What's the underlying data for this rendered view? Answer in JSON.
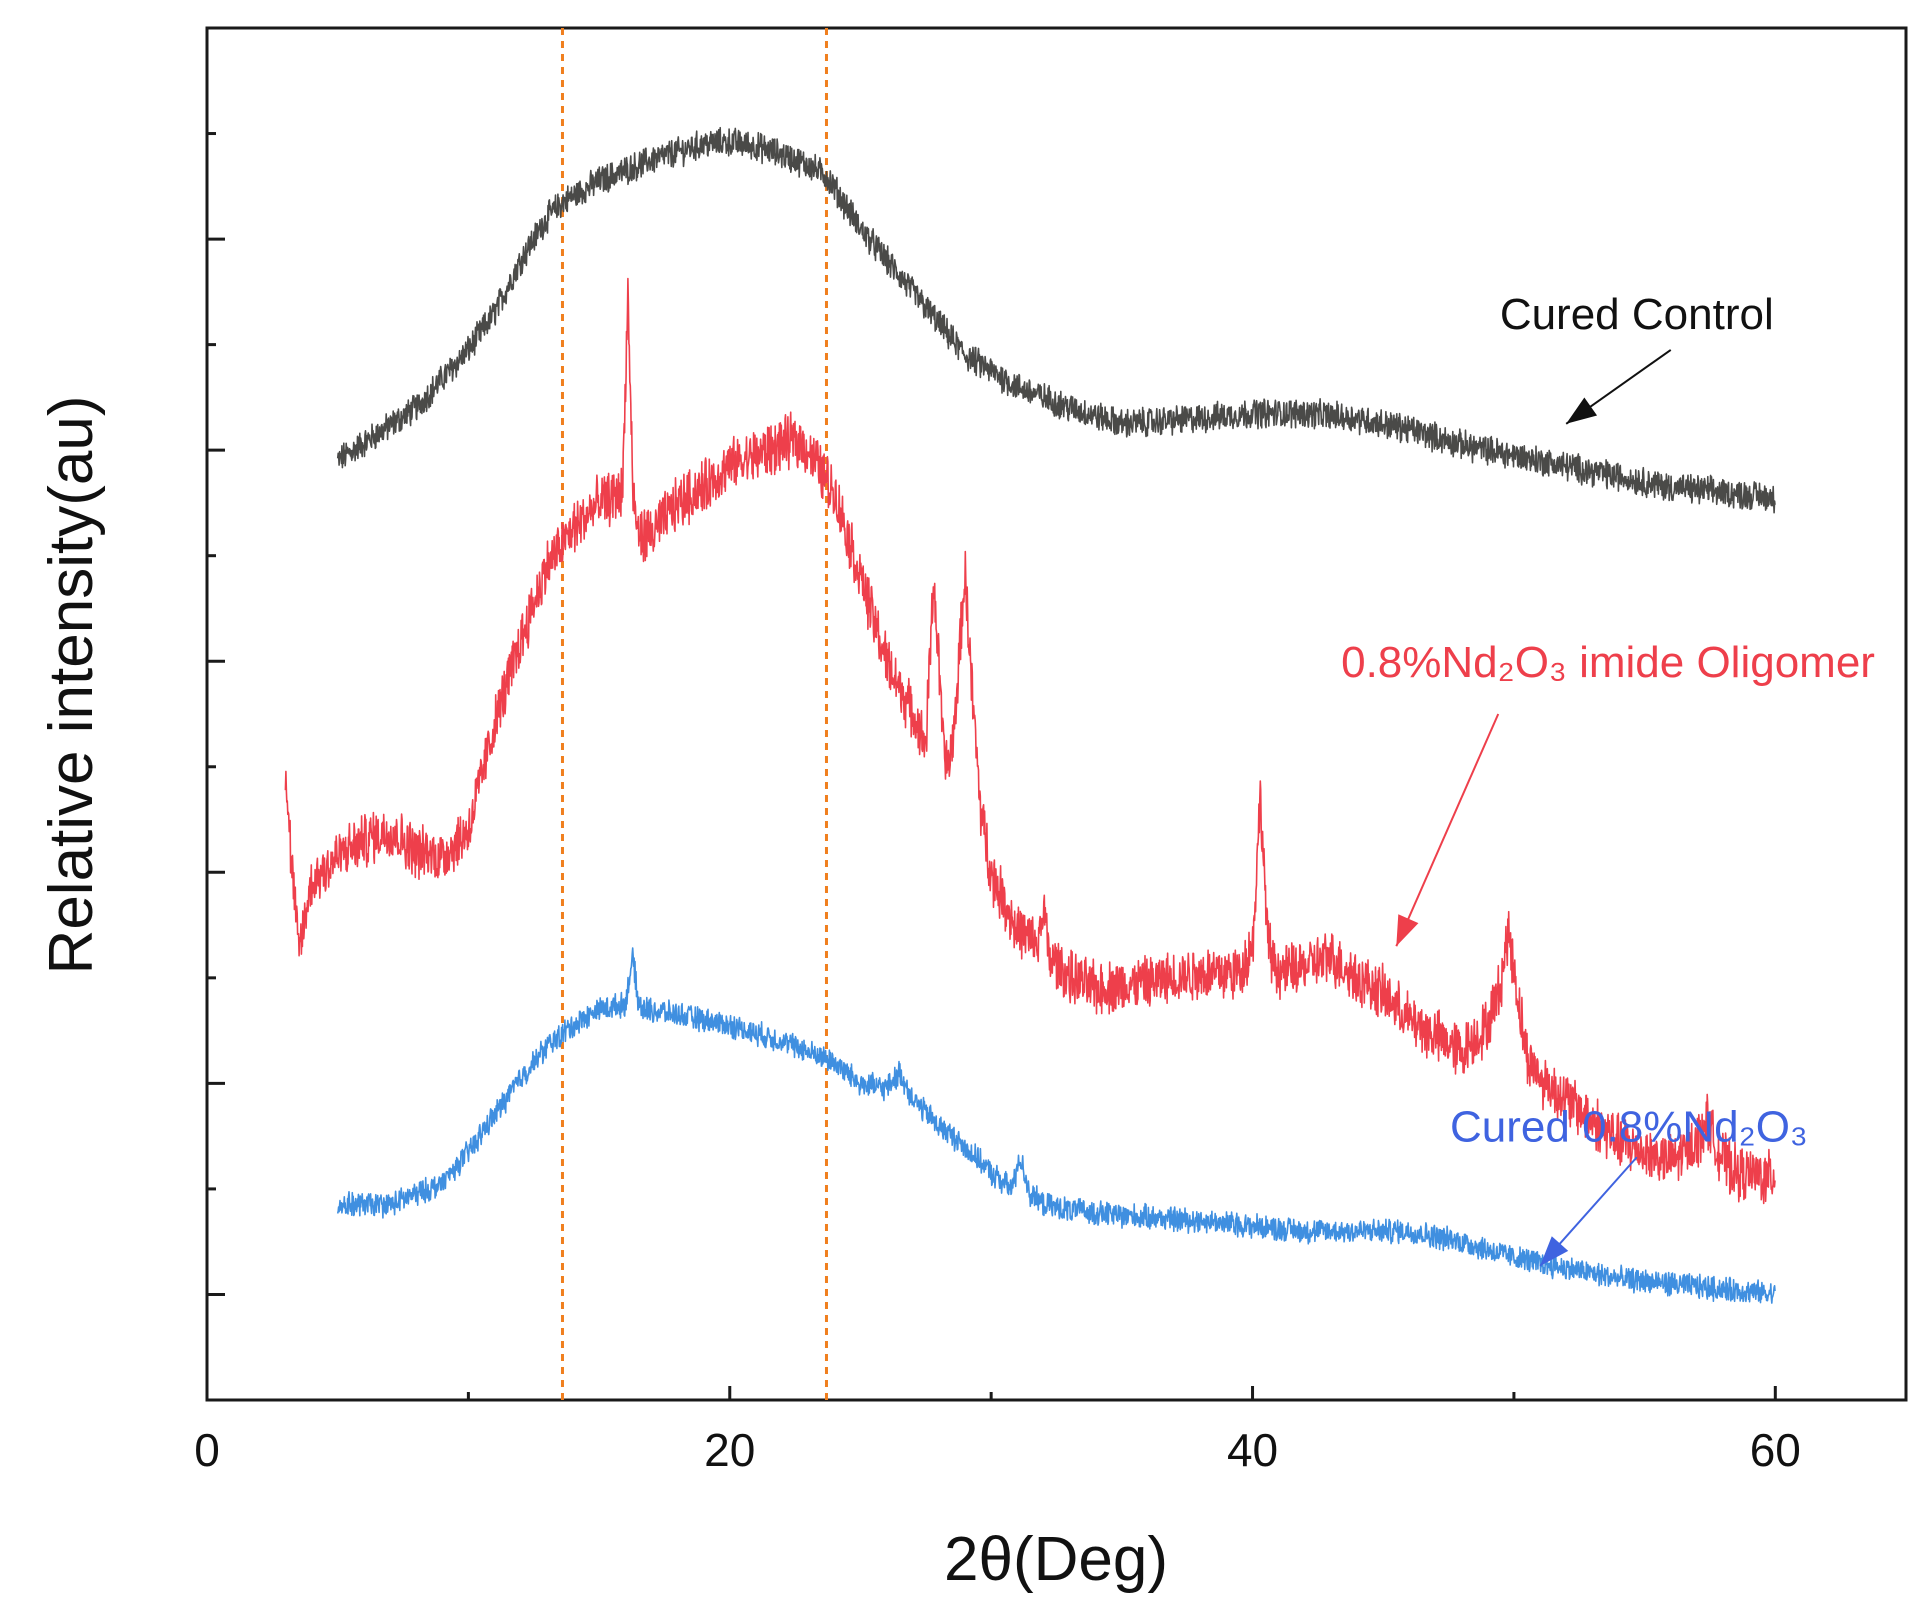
{
  "chart_data": {
    "type": "line",
    "title": "",
    "xlabel": "2θ(Deg)",
    "ylabel": "Relative intensity(au)",
    "xlim": [
      0,
      65
    ],
    "ylim": [
      0,
      13
    ],
    "x_ticks": [
      0,
      20,
      40,
      60
    ],
    "x_tick_labels": [
      "0",
      "20",
      "40",
      "60"
    ],
    "x_minor_ticks": [
      10,
      30,
      50
    ],
    "y_ticks": [
      1,
      2,
      3,
      4,
      5,
      6,
      7,
      8,
      9,
      10,
      11,
      12
    ],
    "y_tick_labels": [],
    "grid": false,
    "reference_lines": [
      {
        "x": 13.6,
        "color": "#f07f1e",
        "style": "dashed"
      },
      {
        "x": 23.7,
        "color": "#f07f1e",
        "style": "dashed"
      }
    ],
    "series": [
      {
        "name": "Cured Control",
        "color": "#4a4a48",
        "noise": 0.12,
        "x": [
          5,
          8,
          10,
          11,
          12,
          13,
          13.6,
          15,
          17,
          19,
          20,
          21,
          22,
          23,
          23.7,
          25,
          27,
          29,
          31,
          33,
          35,
          38,
          40,
          42,
          44,
          46,
          48,
          50,
          52,
          54,
          56,
          58,
          60
        ],
        "values": [
          8.9,
          9.4,
          9.95,
          10.3,
          10.8,
          11.2,
          11.35,
          11.55,
          11.75,
          11.9,
          11.92,
          11.88,
          11.8,
          11.7,
          11.6,
          11.1,
          10.5,
          9.9,
          9.6,
          9.4,
          9.25,
          9.3,
          9.35,
          9.35,
          9.3,
          9.2,
          9.05,
          8.95,
          8.85,
          8.75,
          8.65,
          8.6,
          8.55
        ],
        "label": {
          "text": "Cured Control",
          "color": "#111111",
          "x": 54.7,
          "y": 10.15,
          "anchor": "middle"
        },
        "arrow": {
          "from": [
            56.0,
            9.95
          ],
          "to": [
            52.0,
            9.25
          ],
          "color": "#111111"
        }
      },
      {
        "name": "0.8%Nd2O3 imide Oligomer",
        "color": "#ee3f4b",
        "noise": 0.22,
        "x": [
          3,
          3.2,
          3.5,
          4,
          5,
          6,
          7,
          8,
          9,
          10,
          10.5,
          11,
          12,
          13,
          14,
          15,
          15.5,
          15.9,
          16.1,
          16.3,
          16.5,
          17,
          18,
          19,
          20,
          21,
          22,
          22.5,
          23,
          24,
          25,
          26,
          27,
          27.5,
          27.8,
          28.2,
          28.4,
          28.6,
          29,
          29.3,
          29.6,
          30,
          31,
          31.8,
          32,
          32.2,
          33,
          34,
          36,
          38,
          39.5,
          40,
          40.3,
          40.6,
          41,
          42,
          43,
          44,
          45,
          46,
          47,
          48,
          49,
          49.5,
          49.8,
          50.1,
          50.5,
          51,
          52,
          53,
          54,
          55,
          56,
          57,
          57.4,
          57.8,
          58.5,
          60
        ],
        "values": [
          6.0,
          5.2,
          4.25,
          4.9,
          5.15,
          5.3,
          5.4,
          5.2,
          5.15,
          5.4,
          5.9,
          6.4,
          7.2,
          7.9,
          8.25,
          8.5,
          8.55,
          8.6,
          10.5,
          8.55,
          8.2,
          8.2,
          8.5,
          8.65,
          8.85,
          8.95,
          9.05,
          9.1,
          9.0,
          8.6,
          7.8,
          7.0,
          6.5,
          6.2,
          7.8,
          6.1,
          6.0,
          6.4,
          7.85,
          6.6,
          5.6,
          5.0,
          4.45,
          4.3,
          4.7,
          4.2,
          4.0,
          3.9,
          3.95,
          4.05,
          4.05,
          4.3,
          5.7,
          4.3,
          4.05,
          4.1,
          4.2,
          4.0,
          3.85,
          3.6,
          3.45,
          3.3,
          3.55,
          3.95,
          4.45,
          3.9,
          3.25,
          3.05,
          2.85,
          2.65,
          2.45,
          2.35,
          2.25,
          2.45,
          2.65,
          2.35,
          2.15,
          2.1
        ],
        "label": {
          "text": "0.8%Nd₂O₃ imide Oligomer",
          "color": "#ee3f4b",
          "x": 53.6,
          "y": 6.85,
          "anchor": "middle"
        },
        "arrow": {
          "from": [
            49.4,
            6.5
          ],
          "to": [
            45.5,
            4.3
          ],
          "color": "#ee3f4b"
        }
      },
      {
        "name": "Cured 0.8%Nd2O3",
        "color": "#3f8fe0",
        "noise": 0.1,
        "x": [
          5,
          7,
          8,
          9,
          10,
          11,
          12,
          13,
          14,
          15,
          16,
          16.3,
          16.5,
          16.8,
          18,
          20,
          22,
          24,
          25,
          26,
          26.5,
          27,
          28,
          29,
          30,
          30.8,
          31.1,
          31.5,
          32,
          33,
          35,
          38,
          40,
          42,
          44,
          46,
          48,
          50,
          52,
          54,
          56,
          58,
          60
        ],
        "values": [
          1.85,
          1.85,
          1.95,
          2.05,
          2.35,
          2.7,
          3.05,
          3.35,
          3.55,
          3.7,
          3.75,
          4.2,
          3.75,
          3.7,
          3.65,
          3.55,
          3.4,
          3.2,
          3.0,
          2.95,
          3.1,
          2.85,
          2.6,
          2.4,
          2.15,
          2.0,
          2.3,
          1.95,
          1.85,
          1.8,
          1.75,
          1.7,
          1.65,
          1.6,
          1.6,
          1.6,
          1.5,
          1.35,
          1.25,
          1.15,
          1.1,
          1.05,
          1.0
        ],
        "label": {
          "text": "Cured 0.8%Nd₂O₃",
          "color": "#3f63e0",
          "x": 54.4,
          "y": 2.45,
          "anchor": "middle"
        },
        "arrow": {
          "from": [
            54.7,
            2.3
          ],
          "to": [
            51.0,
            1.27
          ],
          "color": "#3f63e0"
        }
      }
    ]
  }
}
